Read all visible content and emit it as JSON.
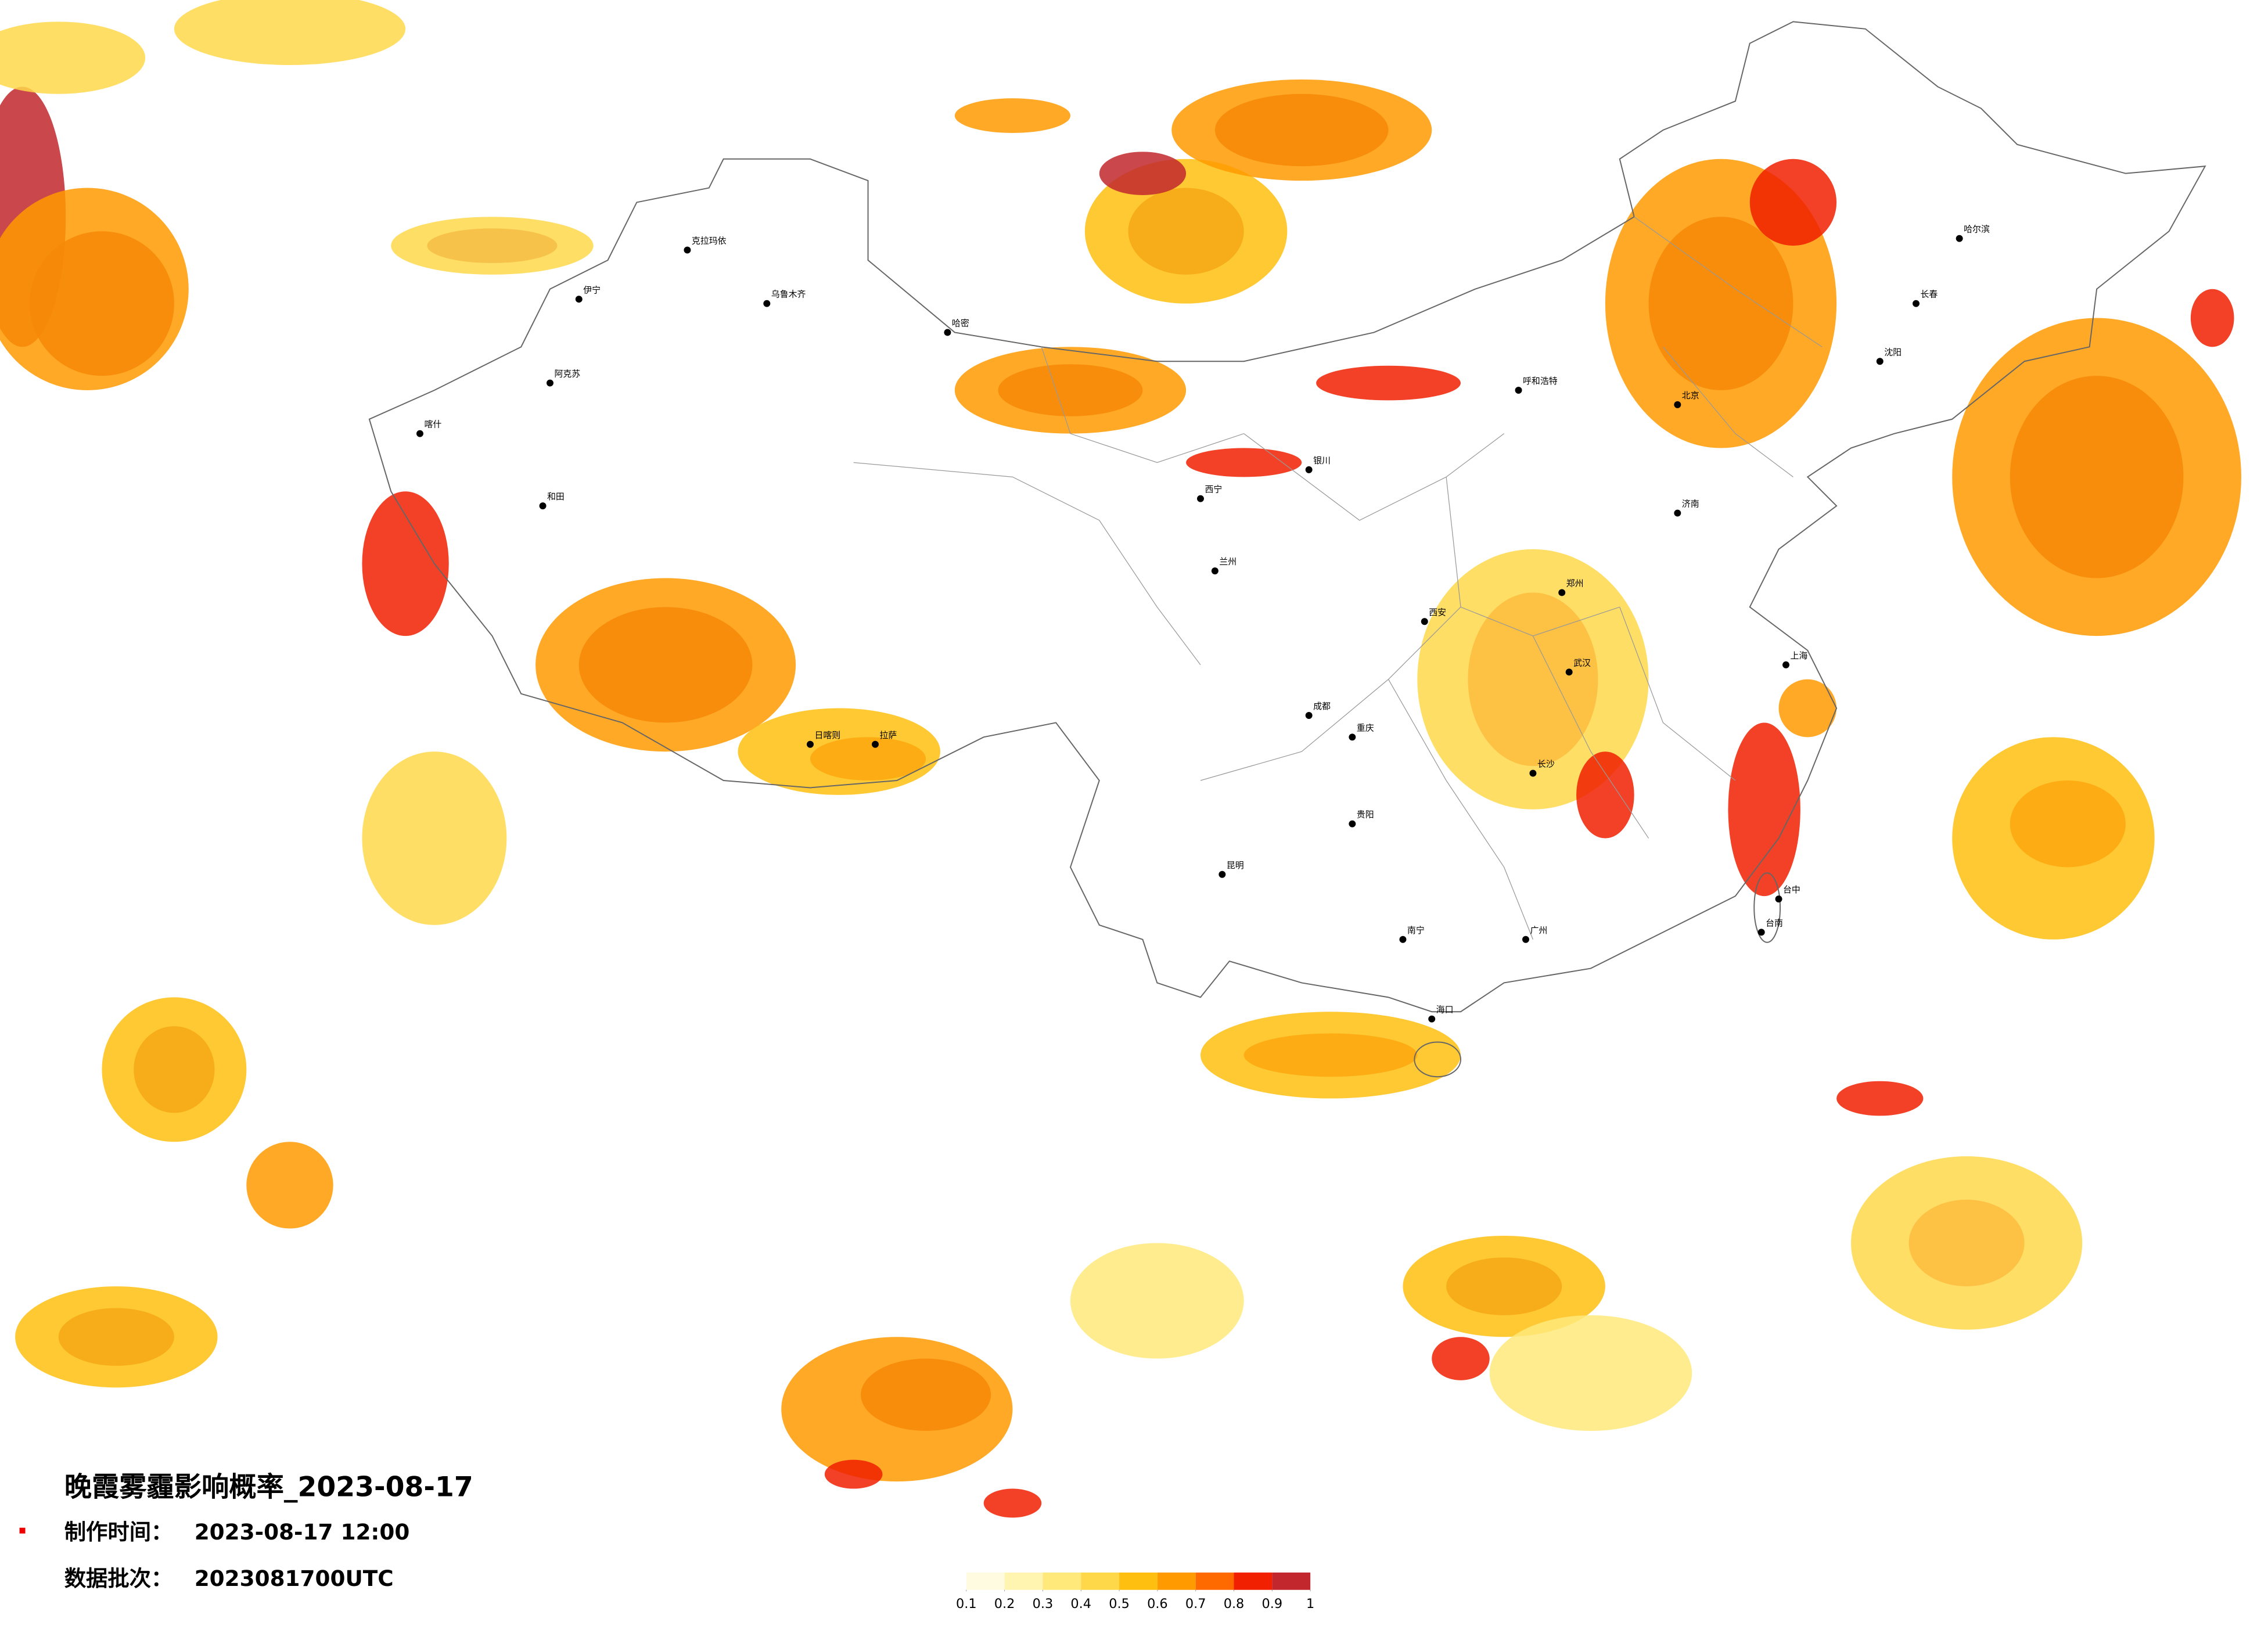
{
  "title": "晚霞雾霾影响概率_2023-08-17",
  "made_label": "制作时间：",
  "made_time": "2023-08-17 12:00",
  "batch_label": "数据批次：",
  "batch": "2023081700UTC",
  "legend": {
    "ticks": [
      0.1,
      0.2,
      0.3,
      0.4,
      0.5,
      0.6,
      0.7,
      0.8,
      0.9,
      1
    ],
    "colors": [
      "#fffbe0",
      "#fff4b0",
      "#ffe97a",
      "#ffd84a",
      "#ffbf10",
      "#ff9a00",
      "#ff6a00",
      "#f02000",
      "#c1272d"
    ]
  },
  "cities": [
    "克拉玛依",
    "乌鲁木齐",
    "伊宁",
    "阿克苏",
    "喀什",
    "和田",
    "哈密",
    "拉萨",
    "日喀则",
    "西宁",
    "兰州",
    "成都",
    "重庆",
    "昆明",
    "贵阳",
    "南宁",
    "广州",
    "武汉",
    "长沙",
    "郑州",
    "北京",
    "上海",
    "哈尔滨",
    "长春",
    "沈阳",
    "济南",
    "西安",
    "海口",
    "呼和浩特",
    "银川",
    "台中",
    "台南"
  ]
}
